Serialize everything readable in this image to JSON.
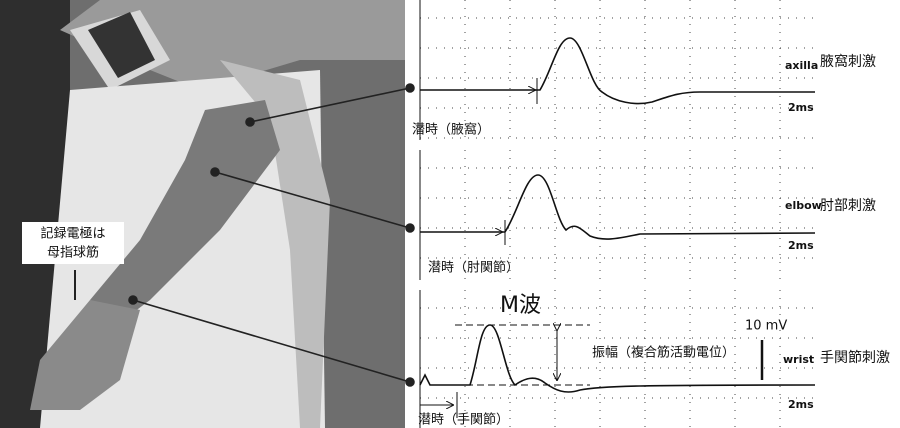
{
  "photo_label": {
    "lines": [
      "記録電極は",
      "母指球筋"
    ]
  },
  "panels": [
    {
      "site": "axilla",
      "stimulus": "腋窩刺激",
      "latency": "潜時（腋窩）",
      "scale": "2ms"
    },
    {
      "site": "elbow",
      "stimulus": "肘部刺激",
      "latency": "潜時（肘関節）",
      "scale": "2ms"
    },
    {
      "site": "wrist",
      "stimulus": "手関節刺激",
      "latency": "潜時（手関節）",
      "scale": "2ms"
    }
  ],
  "m_wave": "M波",
  "amplitude": "振幅（複合筋活動電位）",
  "voltage_scale": "10 mV"
}
